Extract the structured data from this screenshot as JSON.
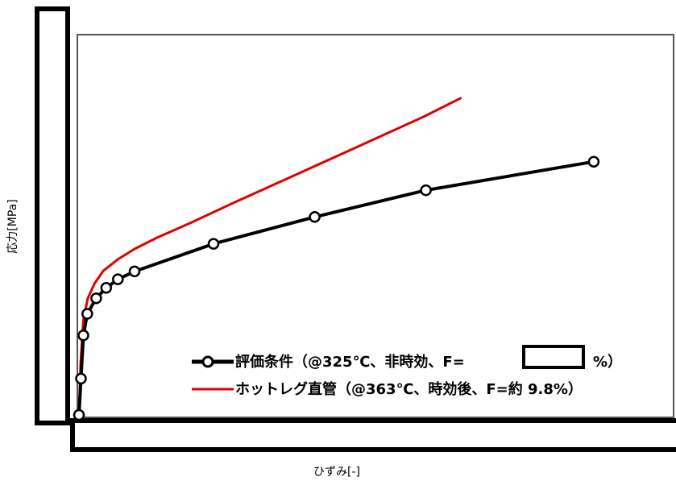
{
  "chart_data": {
    "type": "line",
    "title": "",
    "xlabel": "ひずみ[-]",
    "ylabel": "応力[MPa]",
    "grid": false,
    "legend_position": "bottom-right",
    "tick_labels_visible": false,
    "series": [
      {
        "name": "評価条件（@325℃、非時効、F=",
        "name_suffix": "%）",
        "redacted_value": "",
        "color": "#000000",
        "marker": "open-circle",
        "points": [
          {
            "x": 0.0,
            "y": 0.0
          },
          {
            "x": 0.18,
            "y": 42
          },
          {
            "x": 0.4,
            "y": 92
          },
          {
            "x": 0.75,
            "y": 117
          },
          {
            "x": 1.55,
            "y": 135
          },
          {
            "x": 2.45,
            "y": 147
          },
          {
            "x": 3.5,
            "y": 157
          },
          {
            "x": 5.0,
            "y": 166
          },
          {
            "x": 12.1,
            "y": 198
          },
          {
            "x": 21.2,
            "y": 229
          },
          {
            "x": 31.2,
            "y": 260
          },
          {
            "x": 46.3,
            "y": 293
          }
        ]
      },
      {
        "name": "ホットレグ直管（@363℃、時効後、F=約 9.8%）",
        "color": "#e00000",
        "marker": "none",
        "points": [
          {
            "x": 0.0,
            "y": 0.0
          },
          {
            "x": 0.15,
            "y": 60
          },
          {
            "x": 0.4,
            "y": 110
          },
          {
            "x": 0.8,
            "y": 135
          },
          {
            "x": 1.4,
            "y": 152
          },
          {
            "x": 2.2,
            "y": 167
          },
          {
            "x": 3.5,
            "y": 180
          },
          {
            "x": 5.0,
            "y": 192
          },
          {
            "x": 7.0,
            "y": 205
          },
          {
            "x": 10.0,
            "y": 222
          },
          {
            "x": 14.0,
            "y": 246
          },
          {
            "x": 19.0,
            "y": 275
          },
          {
            "x": 25.0,
            "y": 310
          },
          {
            "x": 31.0,
            "y": 345
          },
          {
            "x": 34.4,
            "y": 367
          }
        ]
      }
    ],
    "xlim": [
      0,
      50
    ],
    "ylim": [
      0,
      440
    ]
  }
}
